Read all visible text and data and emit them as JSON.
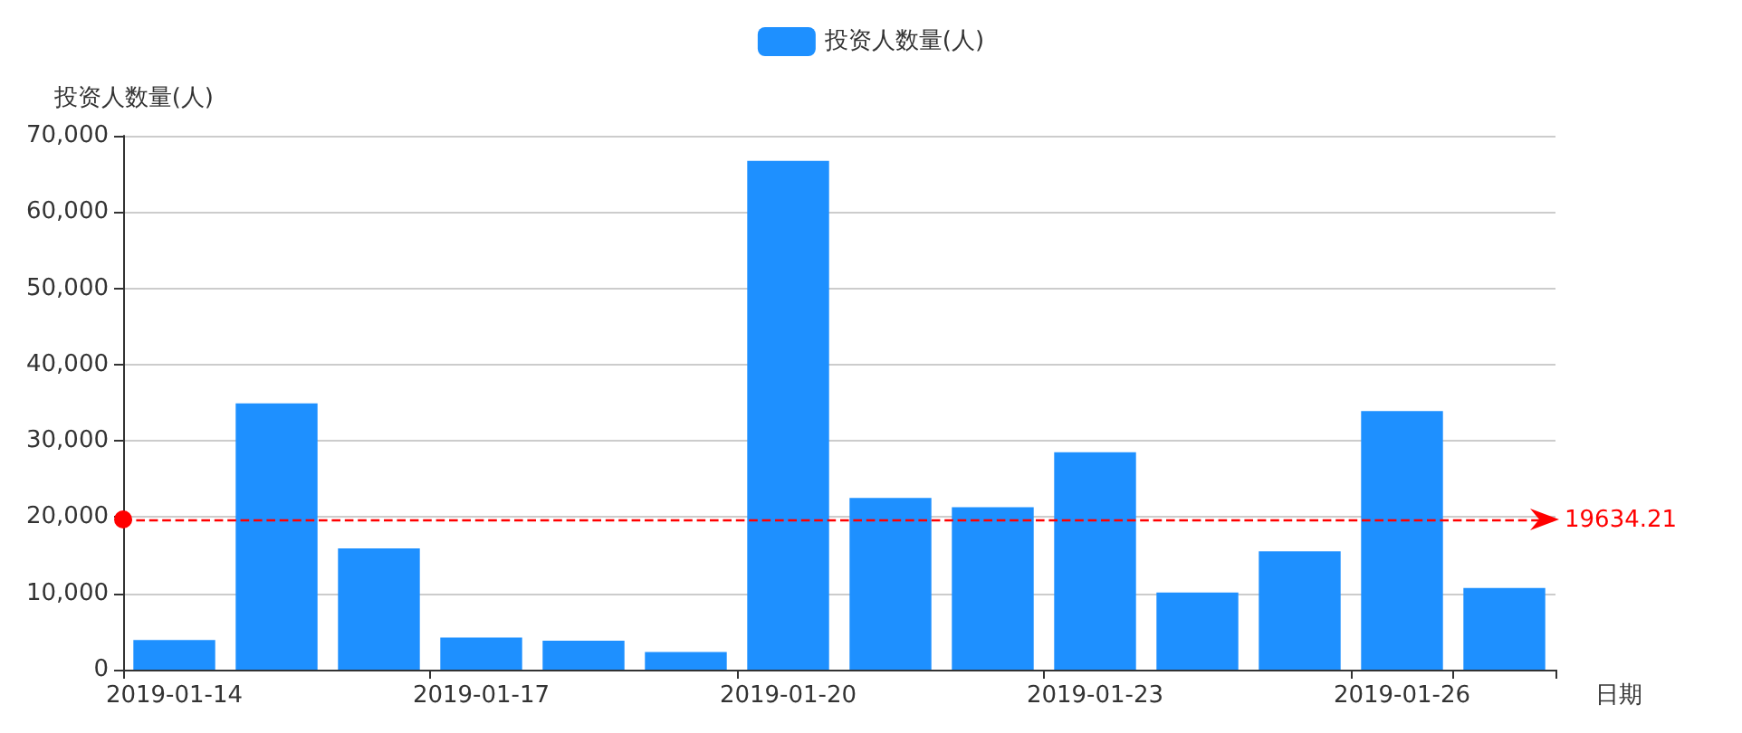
{
  "chart_data": {
    "type": "bar",
    "xlabel": "日期",
    "ylabel": "投资人数量(人)",
    "categories": [
      "2019-01-14",
      null,
      null,
      "2019-01-17",
      null,
      null,
      "2019-01-20",
      null,
      null,
      "2019-01-23",
      null,
      null,
      "2019-01-26",
      null
    ],
    "series": [
      {
        "name": "投资人数量(人)",
        "color": "#1e90ff",
        "values": [
          3900,
          34900,
          15900,
          4200,
          3800,
          2300,
          66700,
          22500,
          21300,
          28500,
          10100,
          15500,
          33900,
          10700
        ]
      }
    ],
    "ylim": [
      0,
      70000
    ],
    "yticks": [
      0,
      {
        "value": 10000,
        "label": "10,000"
      },
      {
        "value": 20000,
        "label": "20,000"
      },
      {
        "value": 30000,
        "label": "30,000"
      },
      {
        "value": 40000,
        "label": "40,000"
      },
      {
        "value": 50000,
        "label": "50,000"
      },
      {
        "value": 60000,
        "label": "60,000"
      },
      {
        "value": 70000,
        "label": "70,000"
      }
    ],
    "ref_lines": [
      {
        "axis": "y",
        "value": 19634.21,
        "label": "19634.21",
        "color": "#ff0000",
        "line_style": "dashed"
      }
    ],
    "grid": "y",
    "legend": "top"
  }
}
